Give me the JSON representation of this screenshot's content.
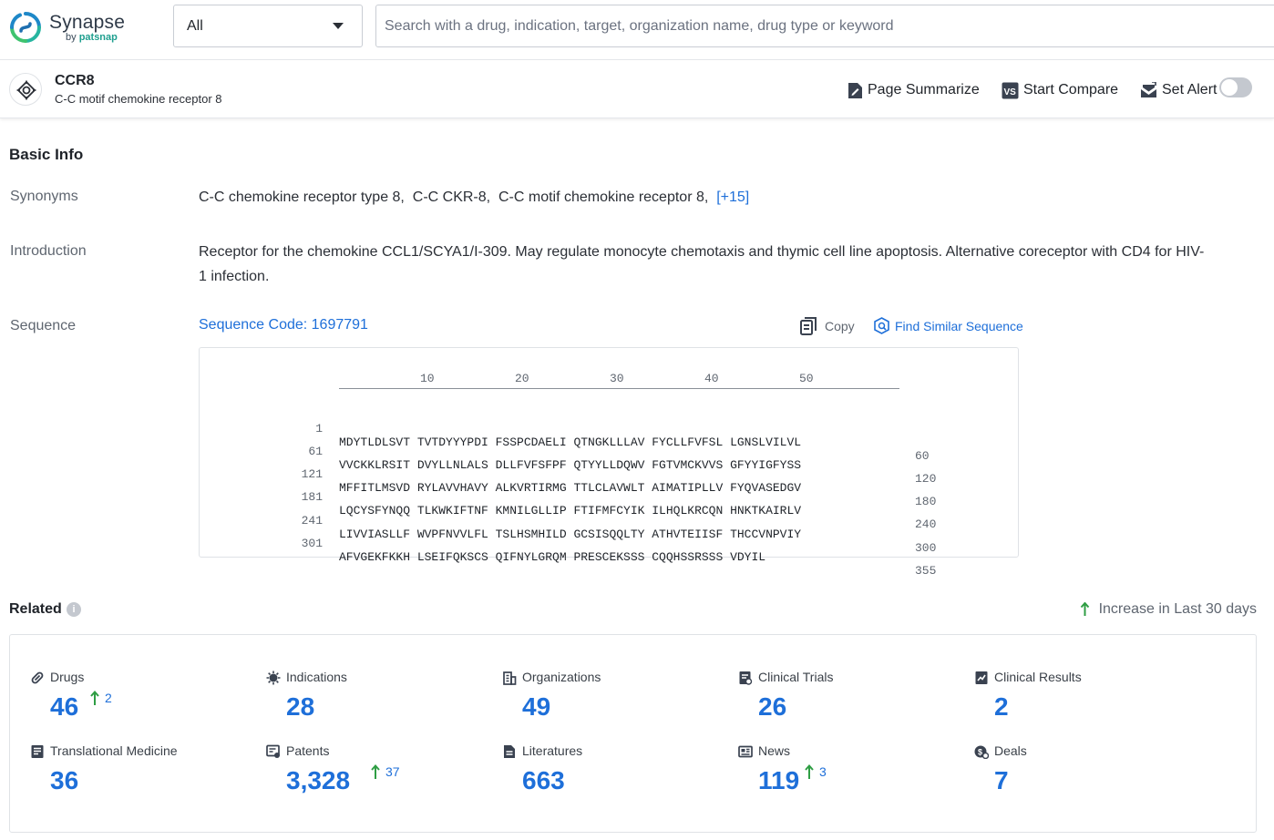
{
  "brand": {
    "name": "Synapse",
    "by": "by",
    "by_brand": "patsnap"
  },
  "search": {
    "category": "All",
    "placeholder": "Search with a drug, indication, target, organization name, drug type or keyword",
    "value": ""
  },
  "target": {
    "name": "CCR8",
    "full_name": "C-C motif chemokine receptor 8"
  },
  "header_actions": {
    "summarize": "Page Summarize",
    "compare": "Start Compare",
    "alert": "Set Alert",
    "alert_enabled": false
  },
  "basic_info": {
    "title": "Basic Info",
    "synonyms_label": "Synonyms",
    "synonyms": [
      "C-C chemokine receptor type 8,",
      "C-C CKR-8,",
      "C-C motif chemokine receptor 8,"
    ],
    "synonyms_more": "[+15]",
    "introduction_label": "Introduction",
    "introduction": "Receptor for the chemokine CCL1/SCYA1/I-309. May regulate monocyte chemotaxis and thymic cell line apoptosis. Alternative coreceptor with CD4 for HIV-1 infection.",
    "sequence_label": "Sequence",
    "sequence_code": "Sequence Code: 1697791",
    "copy_label": "Copy",
    "find_similar_label": "Find Similar Sequence",
    "ruler_ticks": [
      "10",
      "20",
      "30",
      "40",
      "50"
    ],
    "sequence_rows": [
      {
        "start": "1",
        "blocks": "MDYTLDLSVT TVTDYYYPDI FSSPCDAELI QTNGKLLLAV FYCLLFVFSL LGNSLVILVL",
        "end": "60"
      },
      {
        "start": "61",
        "blocks": "VVCKKLRSIT DVYLLNLALS DLLFVFSFPF QTYYLLDQWV FGTVMCKVVS GFYYIGFYSS",
        "end": "120"
      },
      {
        "start": "121",
        "blocks": "MFFITLMSVD RYLAVVHAVY ALKVRTIRMG TTLCLAVWLT AIMATIPLLV FYQVASEDGV",
        "end": "180"
      },
      {
        "start": "181",
        "blocks": "LQCYSFYNQQ TLKWKIFTNF KMNILGLLIP FTIFMFCYIK ILHQLKRCQN HNKTKAIRLV",
        "end": "240"
      },
      {
        "start": "241",
        "blocks": "LIVVIASLLF WVPFNVVLFL TSLHSMHILD GCSISQQLTY ATHVTEIISF THCCVNPVIY",
        "end": "300"
      },
      {
        "start": "301",
        "blocks": "AFVGEKFKKH LSEIFQKSCS QIFNYLGRQM PRESCEKSSS CQQHSSRSSS VDYIL",
        "end": "355"
      }
    ]
  },
  "related": {
    "title": "Related",
    "info_mark": "i",
    "legend": "Increase in Last 30 days",
    "stats": [
      {
        "label": "Drugs",
        "value": "46",
        "increase": "2",
        "icon": "pill-icon"
      },
      {
        "label": "Indications",
        "value": "28",
        "increase": "",
        "icon": "virus-icon"
      },
      {
        "label": "Organizations",
        "value": "49",
        "increase": "",
        "icon": "building-icon"
      },
      {
        "label": "Clinical Trials",
        "value": "26",
        "increase": "",
        "icon": "clipboard-icon"
      },
      {
        "label": "Clinical Results",
        "value": "2",
        "increase": "",
        "icon": "chart-doc-icon"
      },
      {
        "label": "Translational Medicine",
        "value": "36",
        "increase": "",
        "icon": "book-icon"
      },
      {
        "label": "Patents",
        "value": "3,328",
        "increase": "37",
        "icon": "patent-icon"
      },
      {
        "label": "Literatures",
        "value": "663",
        "increase": "",
        "icon": "document-icon"
      },
      {
        "label": "News",
        "value": "119",
        "increase": "3",
        "icon": "newspaper-icon"
      },
      {
        "label": "Deals",
        "value": "7",
        "increase": "",
        "icon": "deal-icon"
      }
    ]
  },
  "colors": {
    "link": "#1e6fd9",
    "increase": "#2f9e44",
    "brand_teal": "#1f9f8f"
  }
}
